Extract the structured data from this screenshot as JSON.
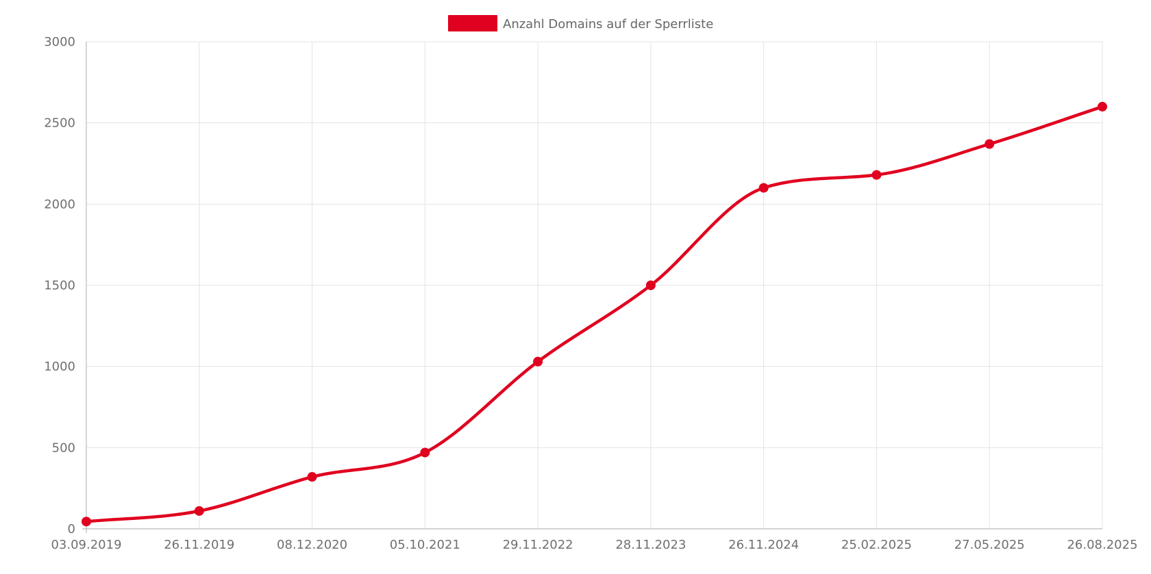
{
  "chart_data": {
    "type": "line",
    "title": "",
    "xlabel": "",
    "ylabel": "",
    "categories": [
      "03.09.2019",
      "26.11.2019",
      "08.12.2020",
      "05.10.2021",
      "29.11.2022",
      "28.11.2023",
      "26.11.2024",
      "25.02.2025",
      "27.05.2025",
      "26.08.2025"
    ],
    "series": [
      {
        "name": "Anzahl Domains auf der Sperrliste",
        "color": "#e0001f",
        "values": [
          45,
          110,
          320,
          470,
          1030,
          1500,
          2100,
          2180,
          2370,
          2600
        ]
      }
    ],
    "ylim": [
      0,
      3000
    ],
    "yticks": [
      "0",
      "500",
      "1000",
      "1500",
      "2000",
      "2500",
      "3000"
    ],
    "grid": true,
    "legend_position": "top-center"
  }
}
